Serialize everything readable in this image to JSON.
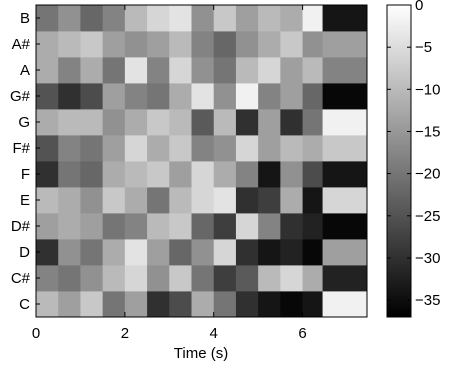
{
  "chart_data": {
    "type": "heatmap",
    "title": "",
    "xlabel": "Time (s)",
    "ylabel": "",
    "xlim": [
      0,
      7.45
    ],
    "x_ticks": [
      0,
      2,
      4,
      6
    ],
    "x_tick_labels": [
      "0",
      "2",
      "4",
      "6"
    ],
    "pitch_classes": [
      "C",
      "C#",
      "D",
      "D#",
      "E",
      "F",
      "F#",
      "G",
      "G#",
      "A",
      "A#",
      "B"
    ],
    "colorbar": {
      "range": [
        -37,
        0
      ],
      "ticks": [
        0,
        -5,
        -10,
        -15,
        -20,
        -25,
        -30,
        -35
      ],
      "tick_labels": [
        "0",
        "−5",
        "−10",
        "−15",
        "−20",
        "−25",
        "−30",
        "−35"
      ],
      "colormap": "gray",
      "low_color": "#000000",
      "high_color": "#ffffff"
    },
    "columns": [
      {
        "t": [
          0.0,
          0.5
        ],
        "values": [
          -10,
          -18,
          -30,
          -14,
          -10,
          -30,
          -25,
          -12,
          -25,
          -12,
          -12,
          -20
        ]
      },
      {
        "t": [
          0.5,
          1.0
        ],
        "values": [
          -14,
          -20,
          -16,
          -12,
          -12,
          -20,
          -18,
          -10,
          -30,
          -18,
          -10,
          -16
        ]
      },
      {
        "t": [
          1.0,
          1.5
        ],
        "values": [
          -8,
          -16,
          -20,
          -14,
          -16,
          -22,
          -20,
          -10,
          -26,
          -12,
          -8,
          -22
        ]
      },
      {
        "t": [
          1.5,
          2.0
        ],
        "values": [
          -20,
          -10,
          -12,
          -20,
          -8,
          -12,
          -14,
          -16,
          -14,
          -20,
          -14,
          -18
        ]
      },
      {
        "t": [
          2.0,
          2.5
        ],
        "values": [
          -14,
          -6,
          -4,
          -18,
          -12,
          -10,
          -6,
          -12,
          -18,
          -4,
          -16,
          -10
        ]
      },
      {
        "t": [
          2.5,
          3.0
        ],
        "values": [
          -30,
          -16,
          -14,
          -10,
          -20,
          -8,
          -12,
          -8,
          -20,
          -18,
          -14,
          -6
        ]
      },
      {
        "t": [
          3.0,
          3.5
        ],
        "values": [
          -26,
          -8,
          -22,
          -8,
          -10,
          -14,
          -8,
          -10,
          -12,
          -6,
          -10,
          -4
        ]
      },
      {
        "t": [
          3.5,
          4.0
        ],
        "values": [
          -12,
          -20,
          -16,
          -22,
          -6,
          -6,
          -18,
          -24,
          -4,
          -16,
          -18,
          -16
        ]
      },
      {
        "t": [
          4.0,
          4.5
        ],
        "values": [
          -20,
          -28,
          -6,
          -28,
          -4,
          -12,
          -16,
          -10,
          -16,
          -20,
          -22,
          -8
        ]
      },
      {
        "t": [
          4.5,
          5.0
        ],
        "values": [
          -30,
          -24,
          -30,
          -6,
          -30,
          -18,
          -6,
          -30,
          -2,
          -10,
          -16,
          -14
        ]
      },
      {
        "t": [
          5.0,
          5.5
        ],
        "values": [
          -34,
          -10,
          -34,
          -18,
          -28,
          -34,
          -14,
          -14,
          -18,
          -6,
          -12,
          -10
        ]
      },
      {
        "t": [
          5.5,
          6.0
        ],
        "values": [
          -36,
          -6,
          -32,
          -30,
          -12,
          -16,
          -10,
          -30,
          -14,
          -14,
          -8,
          -12
        ]
      },
      {
        "t": [
          6.0,
          6.45
        ],
        "values": [
          -34,
          -12,
          -36,
          -32,
          -34,
          -26,
          -12,
          -20,
          -22,
          -10,
          -16,
          -2
        ]
      },
      {
        "t": [
          6.45,
          7.45
        ],
        "values": [
          -2,
          -32,
          -14,
          -36,
          -6,
          -34,
          -8,
          -2,
          -36,
          -18,
          -14,
          -34
        ]
      }
    ]
  }
}
